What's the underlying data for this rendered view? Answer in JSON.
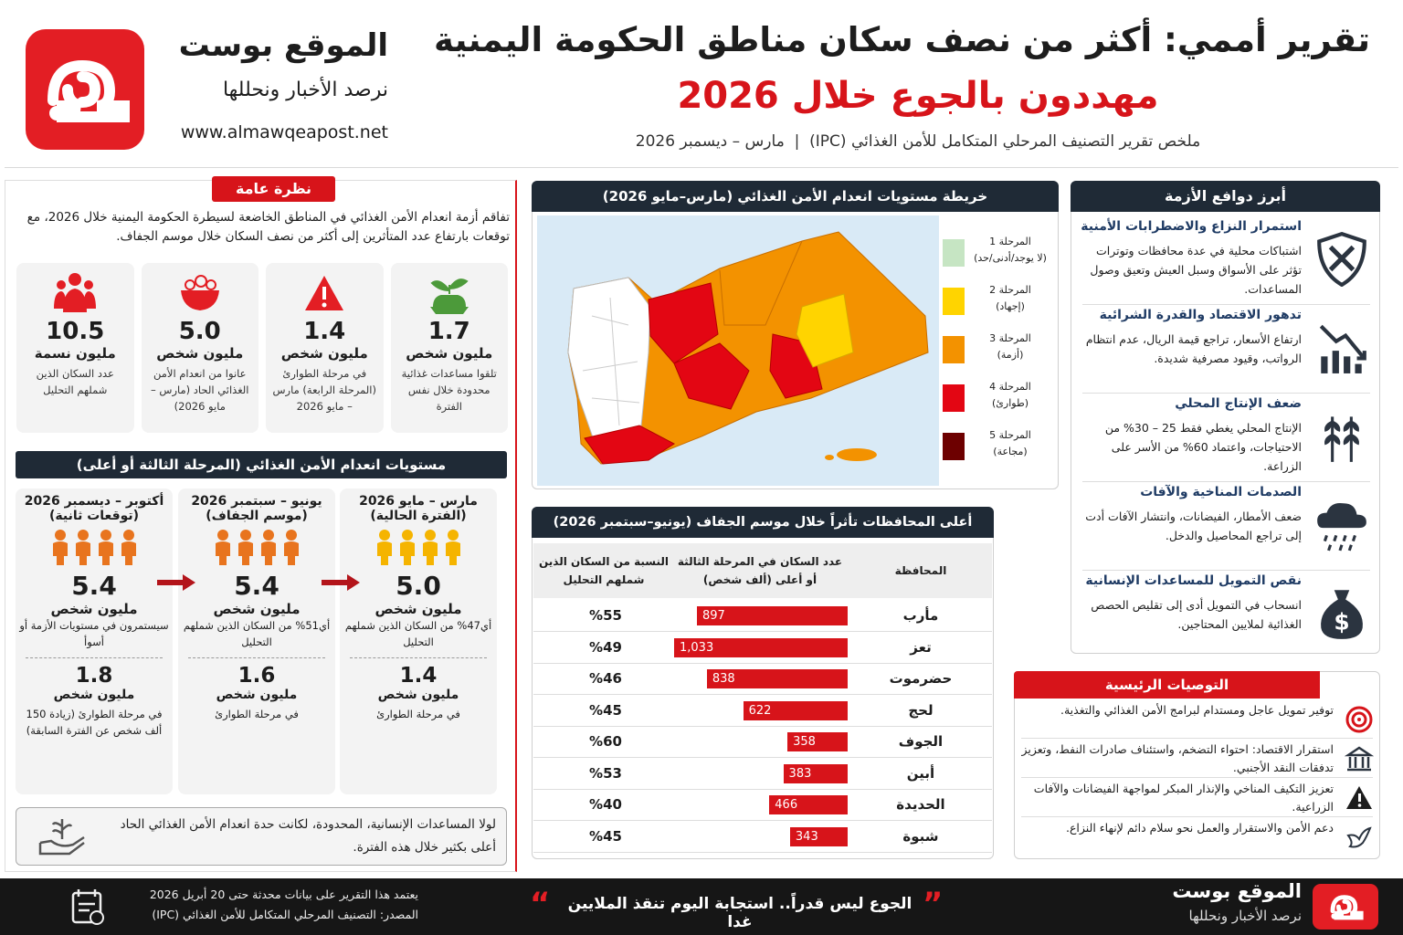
{
  "header": {
    "title_line1": "تقرير أممي: أكثر من نصف سكان مناطق الحكومة اليمنية",
    "title_line2": "مهددون بالجوع خلال 2026",
    "subtitle": "ملخص تقرير التصنيف المرحلي المتكامل للأمن الغذائي (IPC)  |  مارس – ديسمبر 2026"
  },
  "brand": {
    "name": "الموقع بوست",
    "tagline": "نرصد الأخبار ونحللها",
    "url": "www.almawqeapost.net"
  },
  "overview": {
    "heading": "نظرة عامة",
    "text": "تفاقم أزمة انعدام الأمن الغذائي في المناطق الخاضعة لسيطرة الحكومة اليمنية خلال 2026، مع توقعات بارتفاع عدد المتأثرين إلى أكثر من نصف السكان خلال موسم الجفاف.",
    "stats": [
      {
        "value": "1.7",
        "unit": "مليون شخص",
        "desc": "تلقوا مساعدات غذائية محدودة خلال نفس الفترة"
      },
      {
        "value": "1.4",
        "unit": "مليون شخص",
        "desc": "في مرحلة الطوارئ (المرحلة الرابعة) مارس – مايو 2026"
      },
      {
        "value": "5.0",
        "unit": "مليون شخص",
        "desc": "عانوا من انعدام الأمن الغذائي الحاد (مارس – مايو 2026)"
      },
      {
        "value": "10.5",
        "unit": "مليون نسمة",
        "desc": "عدد السكان الذين شملهم التحليل"
      }
    ]
  },
  "levels": {
    "heading": "مستويات انعدام الأمن الغذائي (المرحلة الثالثة أو أعلى)",
    "periods": [
      {
        "period": "مارس – مايو 2026",
        "note": "(الفترة الحالية)",
        "color": "#f5b400",
        "value": "5.0",
        "unit": "مليون شخص",
        "desc": "أي47% من السكان الذين شملهم التحليل",
        "emergency_value": "1.4",
        "emergency_unit": "مليون شخص",
        "emergency_desc": "في مرحلة الطوارئ"
      },
      {
        "period": "يونيو – سبتمبر 2026",
        "note": "(موسم الجفاف)",
        "color": "#e8741e",
        "value": "5.4",
        "unit": "مليون شخص",
        "desc": "أي51% من السكان الذين شملهم التحليل",
        "emergency_value": "1.6",
        "emergency_unit": "مليون شخص",
        "emergency_desc": "في مرحلة الطوارئ"
      },
      {
        "period": "أكتوبر – ديسمبر 2026",
        "note": "(توقعات ثانية)",
        "color": "#e8741e",
        "value": "5.4",
        "unit": "مليون شخص",
        "desc": "سيستمرون في مستويات الأزمة أو أسوأ",
        "emergency_value": "1.8",
        "emergency_unit": "مليون شخص",
        "emergency_desc": "في مرحلة الطوارئ (زيادة 150 ألف شخص عن الفترة السابقة)"
      }
    ],
    "note": "لولا المساعدات الإنسانية، المحدودة، لكانت حدة انعدام الأمن الغذائي الحاد أعلى بكثير خلال هذه الفترة."
  },
  "map": {
    "heading": "خريطة مستويات انعدام الأمن الغذائي (مارس–مايو 2026)",
    "legend": [
      {
        "label": "المرحلة 1",
        "desc": "(لا يوجد/أدنى/حد)",
        "color": "#c6e5c3"
      },
      {
        "label": "المرحلة 2",
        "desc": "(إجهاد)",
        "color": "#ffd400"
      },
      {
        "label": "المرحلة 3",
        "desc": "(أزمة)",
        "color": "#f39200"
      },
      {
        "label": "المرحلة 4",
        "desc": "(طوارئ)",
        "color": "#e30613"
      },
      {
        "label": "المرحلة 5",
        "desc": "(مجاعة)",
        "color": "#6d0000"
      }
    ]
  },
  "table": {
    "heading": "أعلى المحافظات تأثراً خلال موسم الجفاف (يونيو–سبتمبر 2026)",
    "columns": [
      "المحافظة",
      "عدد السكان في المرحلة الثالثة أو أعلى (ألف شخص)",
      "النسبة من السكان الذين شملهم التحليل"
    ],
    "bar_color": "#d7141a",
    "rows": [
      {
        "governorate": "مأرب",
        "population": 897,
        "share": "%55"
      },
      {
        "governorate": "تعز",
        "population": 1033,
        "population_label": "1,033",
        "share": "%49"
      },
      {
        "governorate": "حضرموت",
        "population": 838,
        "share": "%46"
      },
      {
        "governorate": "لحج",
        "population": 622,
        "share": "%45"
      },
      {
        "governorate": "الجوف",
        "population": 358,
        "share": "%60"
      },
      {
        "governorate": "أبين",
        "population": 383,
        "share": "%53"
      },
      {
        "governorate": "الحديدة",
        "population": 466,
        "share": "%40"
      },
      {
        "governorate": "شبوة",
        "population": 343,
        "share": "%45"
      }
    ]
  },
  "drivers": {
    "heading": "أبرز دوافع الأزمة",
    "items": [
      {
        "title": "استمرار النزاع والاضطرابات الأمنية",
        "text": "اشتباكات محلية في عدة محافظات وتوترات تؤثر على الأسواق وسبل العيش وتعيق وصول المساعدات."
      },
      {
        "title": "تدهور الاقتصاد والقدرة الشرائية",
        "text": "ارتفاع الأسعار، تراجع قيمة الريال، عدم انتظام الرواتب، وقيود مصرفية شديدة."
      },
      {
        "title": "ضعف الإنتاج المحلي",
        "text": "الإنتاج المحلي يغطي فقط 25 – 30% من الاحتياجات، واعتماد 60% من الأسر على الزراعة."
      },
      {
        "title": "الصدمات المناخية والآفات",
        "text": "ضعف الأمطار، الفيضانات، وانتشار الآفات أدت إلى تراجع المحاصيل والدخل."
      },
      {
        "title": "نقص التمويل للمساعدات الإنسانية",
        "text": "انسحاب في التمويل أدى إلى تقليص الحصص الغذائية لملايين المحتاجين."
      }
    ]
  },
  "recommendations": {
    "heading": "التوصيات الرئيسية",
    "items": [
      "توفير تمويل عاجل ومستدام لبرامج الأمن الغذائي والتغذية.",
      "استقرار الاقتصاد: احتواء التضخم، واستئناف صادرات النفط، وتعزيز تدفقات النقد الأجنبي.",
      "تعزيز التكيف المناخي والإنذار المبكر لمواجهة الفيضانات والآفات الزراعية.",
      "دعم الأمن والاستقرار والعمل نحو سلام دائم لإنهاء النزاع."
    ]
  },
  "footer": {
    "slogan": "الجوع ليس قدراً.. استجابة اليوم تنقذ الملايين غدا",
    "source_line1": "يعتمد هذا التقرير على بيانات محدثة حتى 20 أبريل 2026",
    "source_line2": "المصدر: التصنيف المرحلي المتكامل للأمن الغذائي (IPC)"
  }
}
